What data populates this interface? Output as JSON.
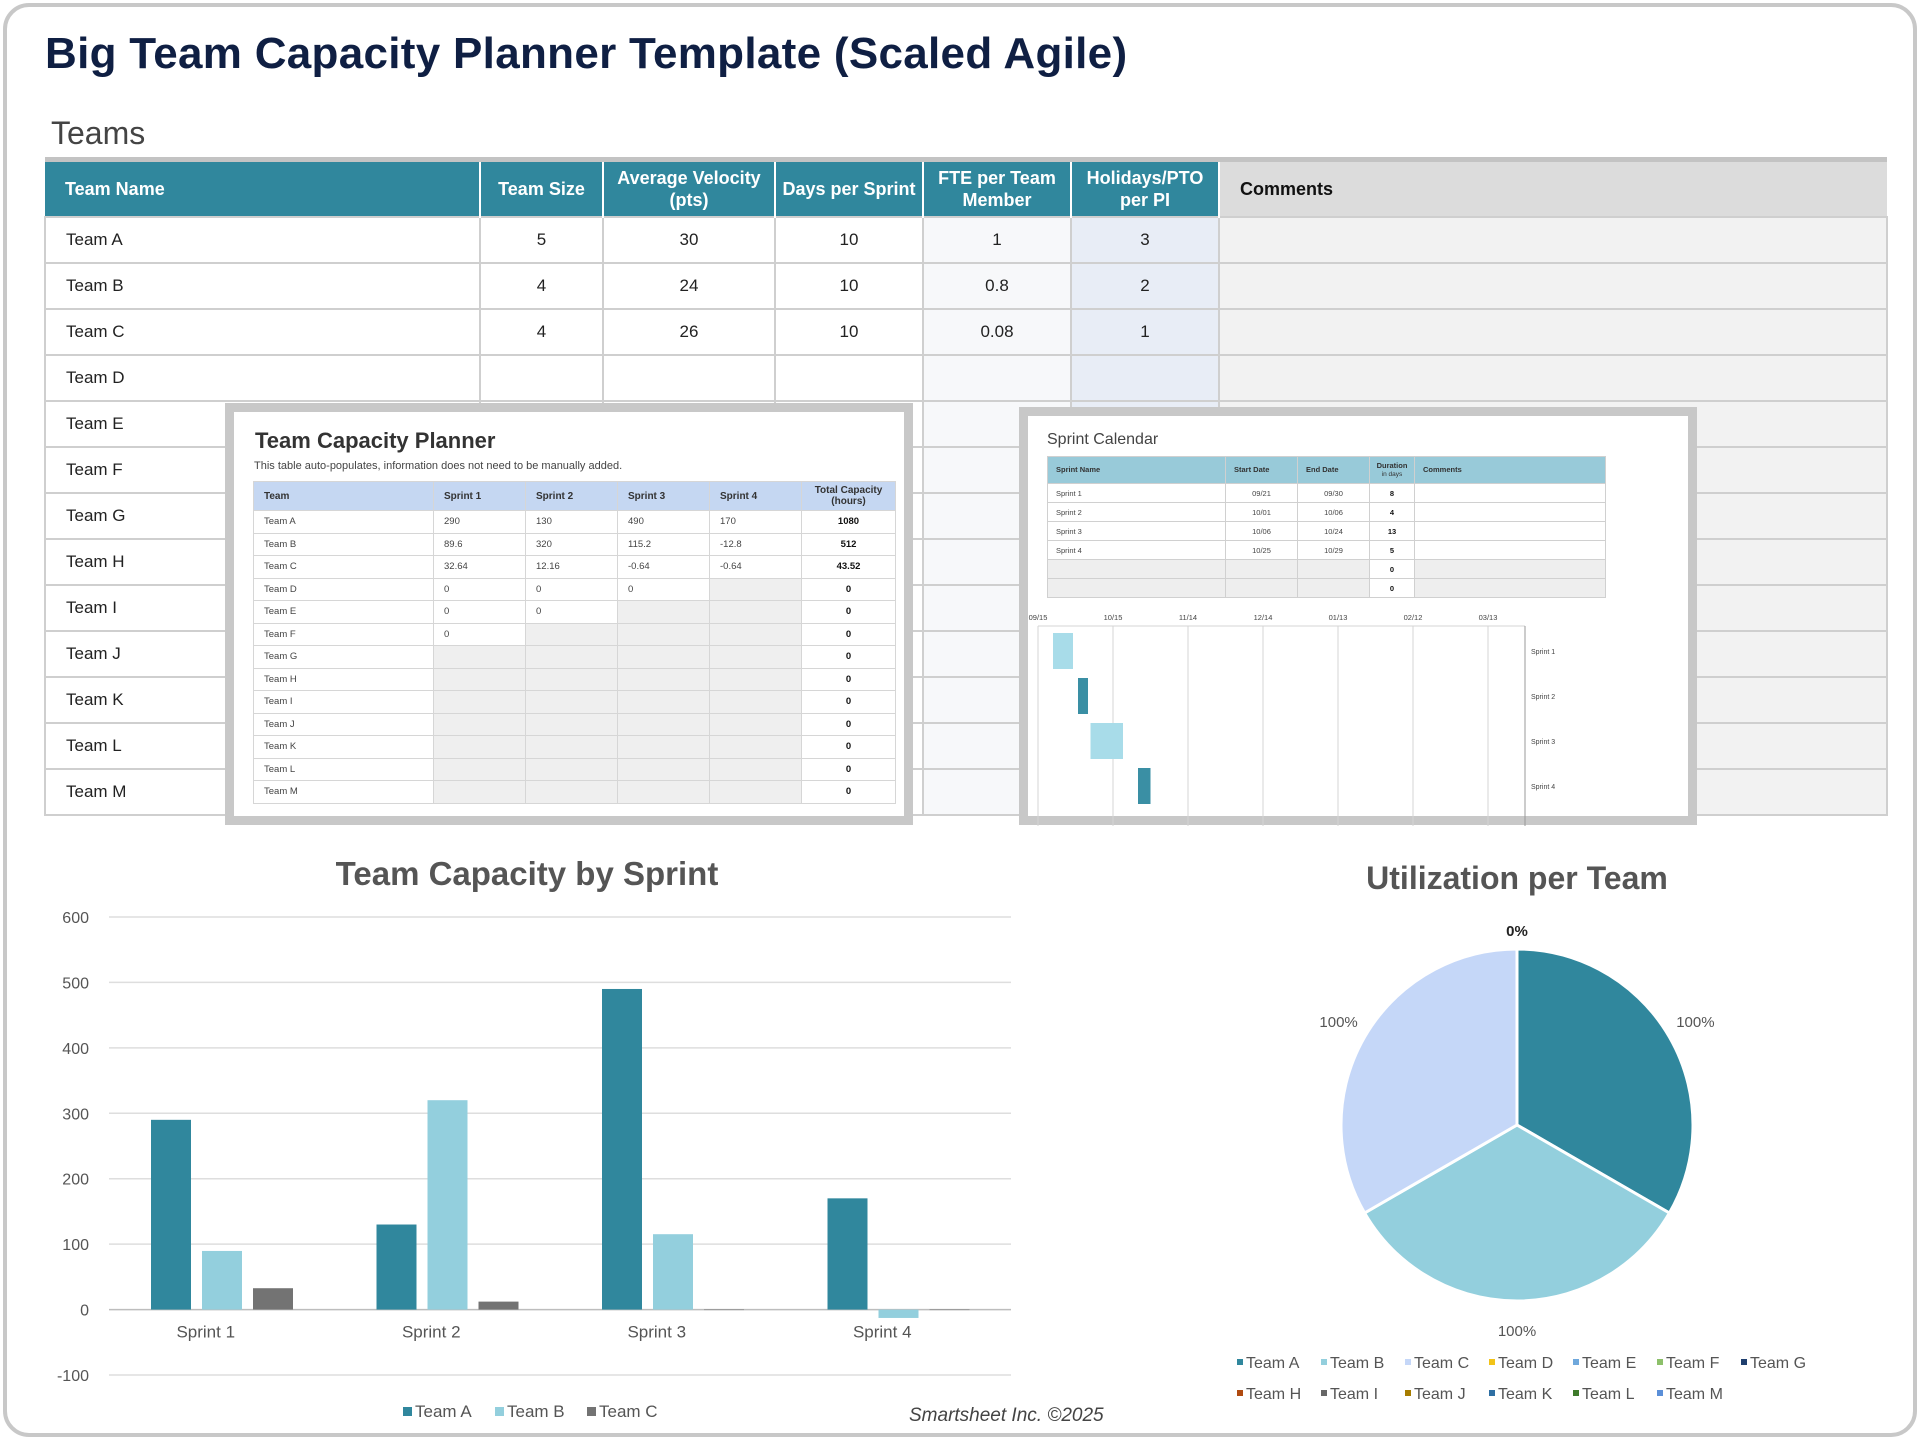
{
  "page": {
    "title": "Big Team Capacity Planner Template (Scaled Agile)",
    "footer": "Smartsheet Inc. ©2025"
  },
  "teams": {
    "section_title": "Teams",
    "headers": {
      "name": "Team Name",
      "size": "Team Size",
      "velocity": "Average Velocity (pts)",
      "days": "Days per Sprint",
      "fte": "FTE per Team Member",
      "holidays": "Holidays/PTO per PI",
      "comments": "Comments"
    },
    "rows": [
      {
        "name": "Team A",
        "size": "5",
        "velocity": "30",
        "days": "10",
        "fte": "1",
        "holidays": "3",
        "comments": ""
      },
      {
        "name": "Team B",
        "size": "4",
        "velocity": "24",
        "days": "10",
        "fte": "0.8",
        "holidays": "2",
        "comments": ""
      },
      {
        "name": "Team C",
        "size": "4",
        "velocity": "26",
        "days": "10",
        "fte": "0.08",
        "holidays": "1",
        "comments": ""
      },
      {
        "name": "Team D",
        "size": "",
        "velocity": "",
        "days": "",
        "fte": "",
        "holidays": "",
        "comments": ""
      },
      {
        "name": "Team E",
        "size": "",
        "velocity": "",
        "days": "",
        "fte": "",
        "holidays": "",
        "comments": ""
      },
      {
        "name": "Team F",
        "size": "",
        "velocity": "",
        "days": "",
        "fte": "",
        "holidays": "",
        "comments": ""
      },
      {
        "name": "Team G",
        "size": "",
        "velocity": "",
        "days": "",
        "fte": "",
        "holidays": "",
        "comments": ""
      },
      {
        "name": "Team H",
        "size": "",
        "velocity": "",
        "days": "",
        "fte": "",
        "holidays": "",
        "comments": ""
      },
      {
        "name": "Team I",
        "size": "",
        "velocity": "",
        "days": "",
        "fte": "",
        "holidays": "",
        "comments": ""
      },
      {
        "name": "Team J",
        "size": "",
        "velocity": "",
        "days": "",
        "fte": "",
        "holidays": "",
        "comments": ""
      },
      {
        "name": "Team K",
        "size": "",
        "velocity": "",
        "days": "",
        "fte": "",
        "holidays": "",
        "comments": ""
      },
      {
        "name": "Team L",
        "size": "",
        "velocity": "",
        "days": "",
        "fte": "",
        "holidays": "",
        "comments": ""
      },
      {
        "name": "Team M",
        "size": "",
        "velocity": "",
        "days": "",
        "fte": "",
        "holidays": "",
        "comments": ""
      }
    ]
  },
  "capacity_planner": {
    "title": "Team Capacity Planner",
    "note": "This table auto-populates, information does not need to be manually added.",
    "headers": [
      "Team",
      "Sprint 1",
      "Sprint 2",
      "Sprint 3",
      "Sprint 4",
      "Total Capacity (hours)"
    ],
    "rows": [
      [
        "Team A",
        "290",
        "130",
        "490",
        "170",
        "1080"
      ],
      [
        "Team B",
        "89.6",
        "320",
        "115.2",
        "-12.8",
        "512"
      ],
      [
        "Team C",
        "32.64",
        "12.16",
        "-0.64",
        "-0.64",
        "43.52"
      ],
      [
        "Team D",
        "0",
        "0",
        "0",
        "",
        "0"
      ],
      [
        "Team E",
        "0",
        "0",
        "",
        "",
        "0"
      ],
      [
        "Team F",
        "0",
        "",
        "",
        "",
        "0"
      ],
      [
        "Team G",
        "",
        "",
        "",
        "",
        "0"
      ],
      [
        "Team H",
        "",
        "",
        "",
        "",
        "0"
      ],
      [
        "Team I",
        "",
        "",
        "",
        "",
        "0"
      ],
      [
        "Team J",
        "",
        "",
        "",
        "",
        "0"
      ],
      [
        "Team K",
        "",
        "",
        "",
        "",
        "0"
      ],
      [
        "Team L",
        "",
        "",
        "",
        "",
        "0"
      ],
      [
        "Team M",
        "",
        "",
        "",
        "",
        "0"
      ]
    ]
  },
  "sprint_calendar": {
    "title": "Sprint Calendar",
    "headers": {
      "name": "Sprint Name",
      "start": "Start Date",
      "end": "End Date",
      "duration": "Duration",
      "duration_sub": "in days",
      "comments": "Comments"
    },
    "rows": [
      {
        "name": "Sprint 1",
        "start": "09/21",
        "end": "09/30",
        "duration": "8",
        "comments": ""
      },
      {
        "name": "Sprint 2",
        "start": "10/01",
        "end": "10/06",
        "duration": "4",
        "comments": ""
      },
      {
        "name": "Sprint 3",
        "start": "10/06",
        "end": "10/24",
        "duration": "13",
        "comments": ""
      },
      {
        "name": "Sprint 4",
        "start": "10/25",
        "end": "10/29",
        "duration": "5",
        "comments": ""
      },
      {
        "name": "",
        "start": "",
        "end": "",
        "duration": "0",
        "comments": ""
      },
      {
        "name": "",
        "start": "",
        "end": "",
        "duration": "0",
        "comments": ""
      }
    ],
    "gantt": {
      "date_ticks": [
        "09/15",
        "10/15",
        "11/14",
        "12/14",
        "01/13",
        "02/12",
        "03/13"
      ],
      "bars": [
        {
          "label": "Sprint 1",
          "start_day": 6,
          "duration_days": 8,
          "color": "#a8dce9"
        },
        {
          "label": "Sprint 2",
          "start_day": 16,
          "duration_days": 4,
          "color": "#3a8fa4"
        },
        {
          "label": "Sprint 3",
          "start_day": 21,
          "duration_days": 13,
          "color": "#a8dce9"
        },
        {
          "label": "Sprint 4",
          "start_day": 40,
          "duration_days": 5,
          "color": "#3a8fa4"
        }
      ],
      "total_days": 180
    }
  },
  "chart_data": [
    {
      "type": "bar",
      "title": "Team Capacity by Sprint",
      "categories": [
        "Sprint 1",
        "Sprint 2",
        "Sprint 3",
        "Sprint 4"
      ],
      "series": [
        {
          "name": "Team A",
          "values": [
            290,
            130,
            490,
            170
          ],
          "color": "#30879d"
        },
        {
          "name": "Team B",
          "values": [
            89.6,
            320,
            115.2,
            -12.8
          ],
          "color": "#93cfdd"
        },
        {
          "name": "Team C",
          "values": [
            32.64,
            12.16,
            -0.64,
            -0.64
          ],
          "color": "#737373"
        }
      ],
      "ylim": [
        -100,
        600
      ],
      "yticks": [
        600,
        500,
        400,
        300,
        200,
        100,
        0,
        -100
      ],
      "grid": true,
      "legend": "bottom",
      "xlabel": "",
      "ylabel": ""
    },
    {
      "type": "pie",
      "title": "Utilization per Team",
      "slices": [
        {
          "name": "Team A",
          "value": 1,
          "label": "100%",
          "color": "#30879d"
        },
        {
          "name": "Team B",
          "value": 1,
          "label": "100%",
          "color": "#93cfdd"
        },
        {
          "name": "Team C",
          "value": 1,
          "label": "100%",
          "color": "#c5d7f8"
        },
        {
          "name": "Team D",
          "value": 0,
          "label": "0%",
          "color": "#f2c318"
        }
      ],
      "legend": [
        {
          "name": "Team A",
          "color": "#30879d"
        },
        {
          "name": "Team B",
          "color": "#93cfdd"
        },
        {
          "name": "Team C",
          "color": "#c5d7f8"
        },
        {
          "name": "Team D",
          "color": "#f2c318"
        },
        {
          "name": "Team E",
          "color": "#6fa8dc"
        },
        {
          "name": "Team F",
          "color": "#8dc06a"
        },
        {
          "name": "Team G",
          "color": "#1f3f6e"
        },
        {
          "name": "Team H",
          "color": "#b04a10"
        },
        {
          "name": "Team I",
          "color": "#666666"
        },
        {
          "name": "Team J",
          "color": "#a67c00"
        },
        {
          "name": "Team K",
          "color": "#2e6fa3"
        },
        {
          "name": "Team L",
          "color": "#3e7a2b"
        },
        {
          "name": "Team M",
          "color": "#5b8fd8"
        }
      ]
    }
  ]
}
